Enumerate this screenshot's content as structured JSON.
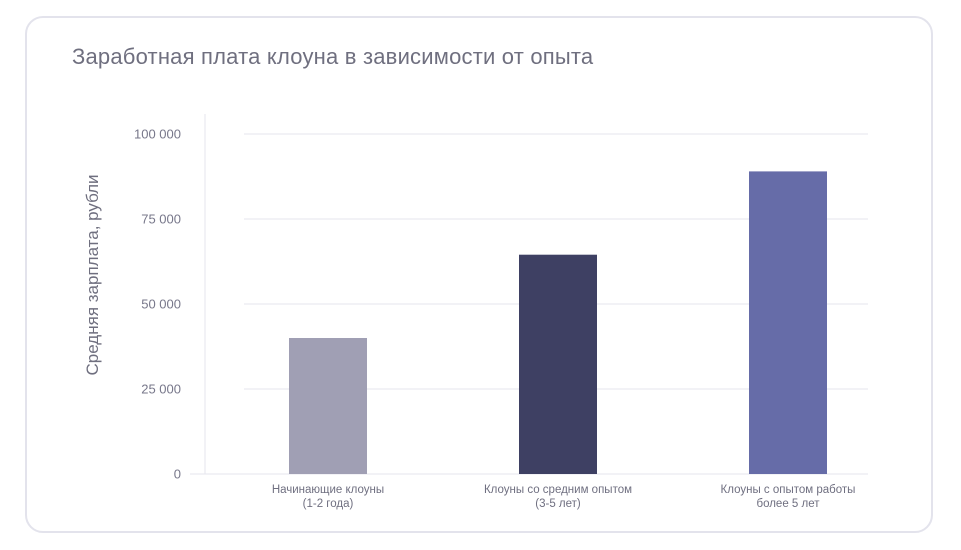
{
  "chart_data": {
    "type": "bar",
    "title": "Заработная плата клоуна в зависимости от опыта",
    "ylabel": "Средняя зарплата, рубли",
    "xlabel": "",
    "ylim": [
      0,
      100000
    ],
    "yticks": [
      0,
      25000,
      50000,
      75000,
      100000
    ],
    "ytick_labels": [
      "0",
      "25 000",
      "50 000",
      "75 000",
      "100 000"
    ],
    "categories": [
      [
        "Начинающие клоуны",
        "(1-2 года)"
      ],
      [
        "Клоуны со средним опытом",
        "(3-5 лет)"
      ],
      [
        "Клоуны с опытом работы",
        "более 5 лет"
      ]
    ],
    "values": [
      40000,
      64500,
      89000
    ],
    "colors": [
      "#a09fb4",
      "#3e4063",
      "#666ca8"
    ],
    "grid": true,
    "gridColor": "#e6e6ee"
  }
}
